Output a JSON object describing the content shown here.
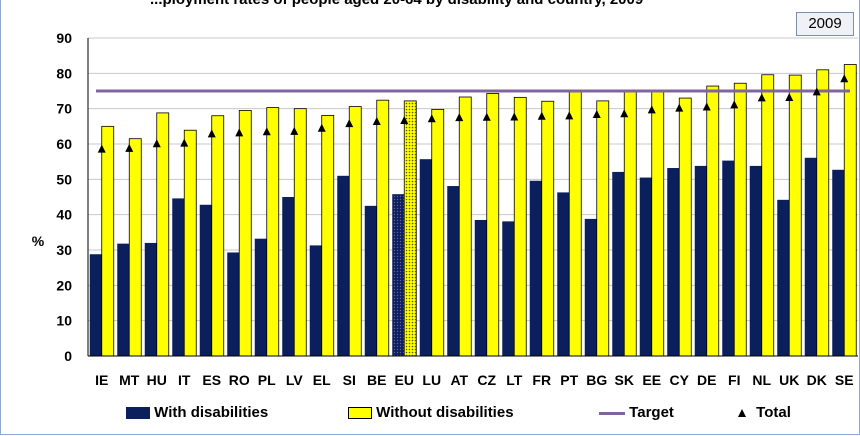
{
  "chart_data": {
    "type": "bar",
    "title": "...ployment rates of people aged 20-64 by disability and country, 2009",
    "year_label": "2009",
    "ylabel": "%",
    "xlabel": "",
    "ylim": [
      0,
      90
    ],
    "yticks": [
      0,
      10,
      20,
      30,
      40,
      50,
      60,
      70,
      80,
      90
    ],
    "grid": true,
    "legend_position": "bottom",
    "categories": [
      "IE",
      "MT",
      "HU",
      "IT",
      "ES",
      "RO",
      "PL",
      "LV",
      "EL",
      "SI",
      "BE",
      "EU",
      "LU",
      "AT",
      "CZ",
      "LT",
      "FR",
      "PT",
      "BG",
      "SK",
      "EE",
      "CY",
      "DE",
      "FI",
      "NL",
      "UK",
      "DK",
      "SE"
    ],
    "highlight_category": "EU",
    "series": [
      {
        "name": "With disabilities",
        "kind": "bar",
        "color": "#0a1f5c",
        "values": [
          28.8,
          31.8,
          32.0,
          44.6,
          42.8,
          29.3,
          33.2,
          45.0,
          31.3,
          51.0,
          42.5,
          45.8,
          55.7,
          48.1,
          38.5,
          38.1,
          49.6,
          46.3,
          38.8,
          52.1,
          50.5,
          53.2,
          53.8,
          55.3,
          53.8,
          44.2,
          56.1,
          52.7
        ]
      },
      {
        "name": "Without disabilities",
        "kind": "bar",
        "color": "#ffff00",
        "values": [
          65.0,
          61.5,
          68.8,
          63.9,
          68.0,
          69.5,
          70.3,
          70.0,
          68.1,
          70.6,
          72.4,
          72.2,
          69.8,
          73.3,
          74.3,
          73.2,
          72.1,
          74.9,
          72.2,
          74.9,
          74.9,
          73.0,
          76.4,
          77.2,
          79.6,
          79.5,
          81.0,
          82.5
        ]
      },
      {
        "name": "Total",
        "kind": "marker",
        "color": "#000000",
        "values": [
          58.7,
          58.9,
          60.2,
          60.4,
          63.0,
          63.3,
          63.6,
          63.7,
          64.6,
          65.9,
          66.5,
          66.8,
          67.3,
          67.6,
          67.7,
          67.8,
          68.0,
          68.1,
          68.5,
          68.7,
          69.8,
          70.3,
          70.6,
          71.2,
          73.2,
          73.3,
          74.9,
          78.6
        ]
      },
      {
        "name": "Target",
        "kind": "line",
        "color": "#8064a2",
        "value": 75
      }
    ]
  }
}
